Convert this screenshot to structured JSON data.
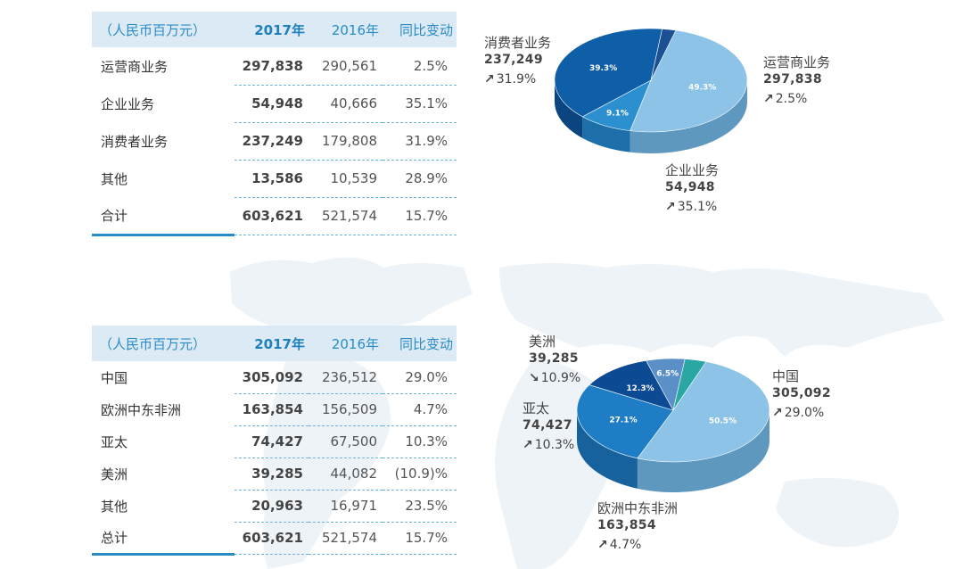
{
  "tables": [
    {
      "headers": [
        "（人民币百万元）",
        "2017年",
        "2016年",
        "同比变动"
      ],
      "rows": [
        [
          "运营商业务",
          "297,838",
          "290,561",
          "2.5%"
        ],
        [
          "企业业务",
          "54,948",
          "40,666",
          "35.1%"
        ],
        [
          "消费者业务",
          "237,249",
          "179,808",
          "31.9%"
        ],
        [
          "其他",
          "13,586",
          "10,539",
          "28.9%"
        ],
        [
          "合计",
          "603,621",
          "521,574",
          "15.7%"
        ]
      ]
    },
    {
      "headers": [
        "（人民币百万元）",
        "2017年",
        "2016年",
        "同比变动"
      ],
      "rows": [
        [
          "中国",
          "305,092",
          "236,512",
          "29.0%"
        ],
        [
          "欧洲中东非洲",
          "163,854",
          "156,509",
          "4.7%"
        ],
        [
          "亚太",
          "74,427",
          "67,500",
          "10.3%"
        ],
        [
          "美洲",
          "39,285",
          "44,082",
          "(10.9)%"
        ],
        [
          "其他",
          "20,963",
          "16,971",
          "23.5%"
        ],
        [
          "总计",
          "603,621",
          "521,574",
          "15.7%"
        ]
      ]
    }
  ],
  "chart_data": [
    {
      "type": "pie",
      "slices": [
        {
          "name": "运营商业务",
          "value": 49.3,
          "pct_label": "49.3%",
          "amount": "297,838",
          "change": "2.5%",
          "direction": "up",
          "color": "#8cc3e6",
          "side": "#5f98bf"
        },
        {
          "name": "企业业务",
          "value": 9.1,
          "pct_label": "9.1%",
          "amount": "54,948",
          "change": "35.1%",
          "direction": "up",
          "color": "#2b8fd0",
          "side": "#1c6fa8"
        },
        {
          "name": "消费者业务",
          "value": 39.3,
          "pct_label": "39.3%",
          "amount": "237,249",
          "change": "31.9%",
          "direction": "up",
          "color": "#0f5fa8",
          "side": "#0a4580"
        },
        {
          "name": "其他",
          "value": 2.3,
          "pct_label": "",
          "color": "#1d4f93",
          "side": "#133a70"
        }
      ]
    },
    {
      "type": "pie",
      "slices": [
        {
          "name": "中国",
          "value": 50.5,
          "pct_label": "50.5%",
          "amount": "305,092",
          "change": "29.0%",
          "direction": "up",
          "color": "#8cc3e6",
          "side": "#5f98bf"
        },
        {
          "name": "欧洲中东非洲",
          "value": 27.1,
          "pct_label": "27.1%",
          "amount": "163,854",
          "change": "4.7%",
          "direction": "up",
          "color": "#1f7dc6",
          "side": "#17629c"
        },
        {
          "name": "亚太",
          "value": 12.3,
          "pct_label": "12.3%",
          "amount": "74,427",
          "change": "10.3%",
          "direction": "up",
          "color": "#0d4a94",
          "side": "#093670"
        },
        {
          "name": "美洲",
          "value": 6.5,
          "pct_label": "6.5%",
          "amount": "39,285",
          "change": "10.9%",
          "direction": "down",
          "color": "#5a8fc8",
          "side": "#3f6f9e"
        },
        {
          "name": "其他",
          "value": 3.6,
          "pct_label": "",
          "color": "#2aa7a3",
          "side": "#1f807c"
        }
      ]
    }
  ],
  "arrows": {
    "up": "↗",
    "down": "↘"
  }
}
